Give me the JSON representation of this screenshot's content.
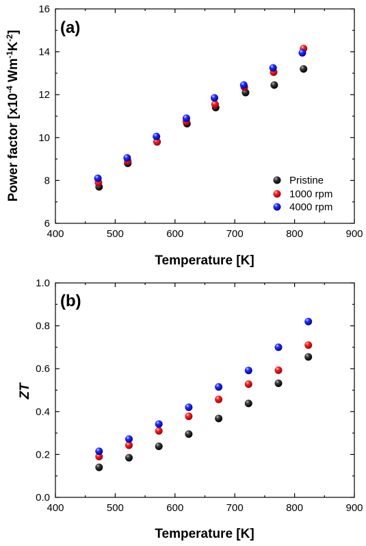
{
  "chart_data": [
    {
      "type": "scatter",
      "panel_label": "(a)",
      "xlabel": "Temperature [K]",
      "ylabel_main": "Power factor [x10",
      "ylabel_exp1": "-4",
      "ylabel_mid": " Wm",
      "ylabel_exp2": "-1",
      "ylabel_mid2": "K",
      "ylabel_exp3": "-2",
      "ylabel_end": "]",
      "xlim": [
        400,
        900
      ],
      "ylim": [
        6,
        16
      ],
      "x_ticks": [
        400,
        500,
        600,
        700,
        800,
        900
      ],
      "y_ticks": [
        6,
        8,
        10,
        12,
        14,
        16
      ],
      "y_tick_labels": [
        "6",
        "8",
        "10",
        "12",
        "14",
        "16"
      ],
      "legend_position": "lower-right",
      "series": [
        {
          "name": "Pristine",
          "color": "#000000",
          "x": [
            473,
            521,
            570,
            620,
            668,
            718,
            766,
            815
          ],
          "y": [
            7.7,
            8.8,
            9.8,
            10.65,
            11.4,
            12.1,
            12.45,
            13.2
          ]
        },
        {
          "name": "1000 rpm",
          "color": "#e00000",
          "x": [
            472,
            521,
            570,
            619,
            667,
            716,
            765,
            815
          ],
          "y": [
            7.9,
            8.9,
            9.8,
            10.75,
            11.55,
            12.35,
            13.05,
            14.15
          ]
        },
        {
          "name": "4000 rpm",
          "color": "#1010e0",
          "x": [
            471,
            520,
            569,
            619,
            666,
            715,
            764,
            813
          ],
          "y": [
            8.1,
            9.05,
            10.05,
            10.9,
            11.85,
            12.45,
            13.25,
            13.95
          ]
        }
      ]
    },
    {
      "type": "scatter",
      "panel_label": "(b)",
      "xlabel": "Temperature [K]",
      "ylabel": "ZT",
      "xlim": [
        400,
        900
      ],
      "ylim": [
        0.0,
        1.0
      ],
      "x_ticks": [
        400,
        500,
        600,
        700,
        800,
        900
      ],
      "y_ticks": [
        0.0,
        0.2,
        0.4,
        0.6,
        0.8,
        1.0
      ],
      "y_tick_labels": [
        "0.0",
        "0.2",
        "0.4",
        "0.6",
        "0.8",
        "1.0"
      ],
      "series": [
        {
          "name": "Pristine",
          "color": "#000000",
          "x": [
            473,
            523,
            573,
            623,
            673,
            723,
            773,
            823
          ],
          "y": [
            0.14,
            0.185,
            0.238,
            0.295,
            0.368,
            0.438,
            0.532,
            0.655
          ]
        },
        {
          "name": "1000 rpm",
          "color": "#e00000",
          "x": [
            473,
            523,
            573,
            623,
            673,
            723,
            773,
            823
          ],
          "y": [
            0.19,
            0.243,
            0.31,
            0.378,
            0.457,
            0.528,
            0.593,
            0.71
          ]
        },
        {
          "name": "4000 rpm",
          "color": "#1010e0",
          "x": [
            473,
            523,
            573,
            623,
            673,
            723,
            773,
            823
          ],
          "y": [
            0.215,
            0.272,
            0.342,
            0.42,
            0.515,
            0.592,
            0.7,
            0.82
          ]
        }
      ]
    }
  ]
}
